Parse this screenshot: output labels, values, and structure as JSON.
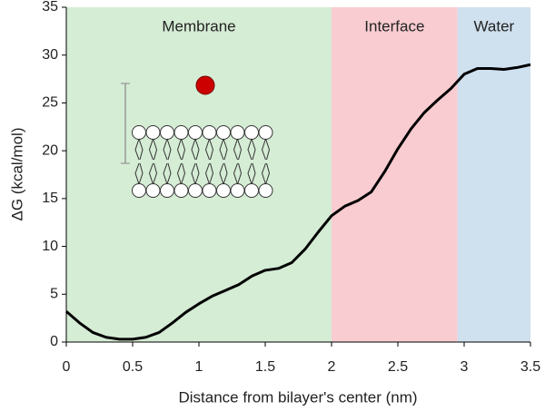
{
  "chart_data": {
    "type": "line",
    "x_label": "Distance from bilayer's center (nm)",
    "y_label": "ΔG (kcal/mol)",
    "x": [
      0,
      0.1,
      0.2,
      0.3,
      0.4,
      0.5,
      0.6,
      0.7,
      0.8,
      0.9,
      1.0,
      1.1,
      1.2,
      1.3,
      1.4,
      1.5,
      1.6,
      1.7,
      1.8,
      1.9,
      2.0,
      2.1,
      2.2,
      2.3,
      2.4,
      2.5,
      2.6,
      2.7,
      2.8,
      2.9,
      3.0,
      3.1,
      3.2,
      3.3,
      3.4,
      3.5
    ],
    "values": [
      3.2,
      2.0,
      1.0,
      0.5,
      0.3,
      0.3,
      0.5,
      1.0,
      2.0,
      3.1,
      4.0,
      4.8,
      5.4,
      6.0,
      6.9,
      7.5,
      7.7,
      8.3,
      9.7,
      11.5,
      13.2,
      14.2,
      14.8,
      15.7,
      17.8,
      20.2,
      22.3,
      24.0,
      25.3,
      26.5,
      28.0,
      28.6,
      28.6,
      28.5,
      28.7,
      29.0
    ],
    "color": "#000000",
    "regions": [
      {
        "name": "Membrane",
        "start": 0,
        "end": 2,
        "color": "#d5ecd5"
      },
      {
        "name": "Interface",
        "start": 2,
        "end": 2.95,
        "color": "#f8ccd0"
      },
      {
        "name": "Water",
        "start": 2.95,
        "end": 3.5,
        "color": "#cfe0ef"
      }
    ],
    "xlim": [
      0,
      3.5
    ],
    "xticks": [
      0,
      0.5,
      1,
      1.5,
      2,
      2.5,
      3,
      3.5
    ],
    "ylim": [
      0,
      35
    ],
    "yticks": [
      0,
      5,
      10,
      15,
      20,
      25,
      30,
      35
    ]
  }
}
